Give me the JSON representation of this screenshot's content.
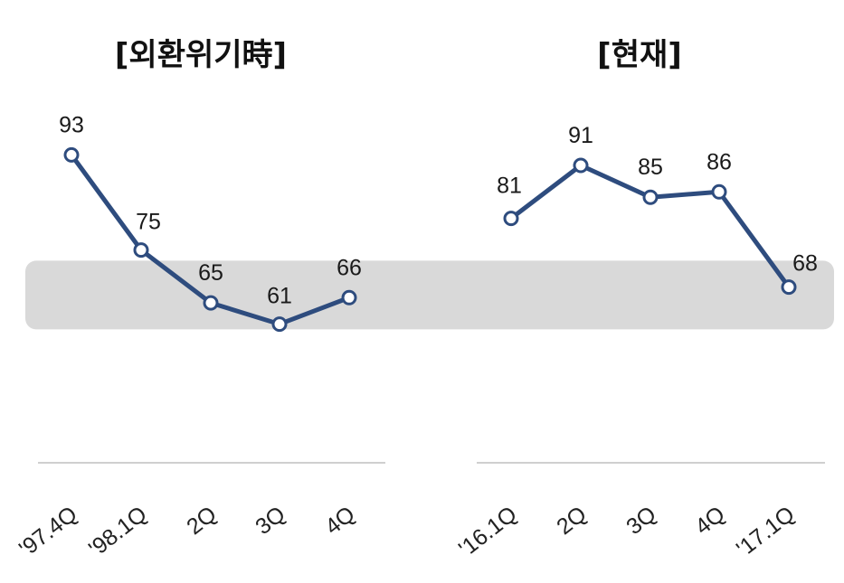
{
  "colors": {
    "line": "#2e4c7e",
    "band": "#d9d9d9",
    "axis": "#cfcfcf",
    "marker_fill": "#ffffff"
  },
  "chart_data": [
    {
      "type": "line",
      "title": "[외환위기時]",
      "categories": [
        "'97.4Q",
        "'98.1Q",
        "2Q",
        "3Q",
        "4Q"
      ],
      "values": [
        93,
        75,
        65,
        61,
        66
      ],
      "data_labels": [
        "93",
        "75",
        "65",
        "61",
        "66"
      ],
      "ylim": [
        50,
        100
      ],
      "grid": false,
      "legend": "none"
    },
    {
      "type": "line",
      "title": "[현재]",
      "categories": [
        "'16.1Q",
        "2Q",
        "3Q",
        "4Q",
        "'17.1Q"
      ],
      "values": [
        81,
        91,
        85,
        86,
        68
      ],
      "data_labels": [
        "81",
        "91",
        "85",
        "86",
        "68"
      ],
      "ylim": [
        50,
        100
      ],
      "grid": false,
      "legend": "none"
    }
  ],
  "shaded_band": {
    "from": 60,
    "to": 73
  }
}
